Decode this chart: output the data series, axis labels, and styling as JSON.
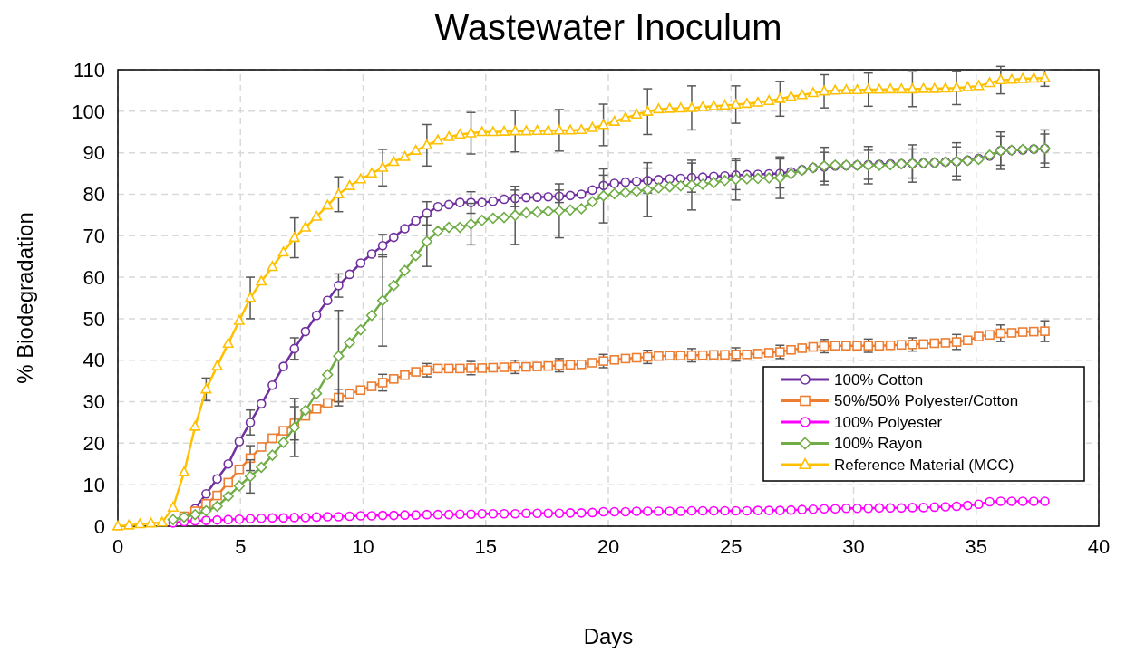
{
  "chart_data": {
    "type": "line",
    "title": "Wastewater Inoculum",
    "xlabel": "Days",
    "ylabel": "% Biodegradation",
    "x": [
      0,
      0.45,
      0.9,
      1.35,
      1.8,
      2.25,
      2.7,
      3.15,
      3.6,
      4.05,
      4.5,
      4.95,
      5.4,
      5.85,
      6.3,
      6.75,
      7.2,
      7.65,
      8.1,
      8.55,
      9.0,
      9.45,
      9.9,
      10.35,
      10.8,
      11.25,
      11.7,
      12.15,
      12.6,
      13.05,
      13.5,
      13.95,
      14.4,
      14.85,
      15.3,
      15.75,
      16.2,
      16.65,
      17.1,
      17.55,
      18.0,
      18.45,
      18.9,
      19.35,
      19.8,
      20.25,
      20.7,
      21.15,
      21.6,
      22.05,
      22.5,
      22.95,
      23.4,
      23.85,
      24.3,
      24.75,
      25.2,
      25.65,
      26.1,
      26.55,
      27.0,
      27.45,
      27.9,
      28.35,
      28.8,
      29.25,
      29.7,
      30.15,
      30.6,
      31.05,
      31.5,
      31.95,
      32.4,
      32.85,
      33.3,
      33.75,
      34.2,
      34.65,
      35.1,
      35.55,
      36.0,
      36.45,
      36.9,
      37.35,
      37.8
    ],
    "xlim": [
      0,
      40
    ],
    "xticks": [
      0,
      5,
      10,
      15,
      20,
      25,
      30,
      35,
      40
    ],
    "ylim": [
      0,
      110
    ],
    "yticks": [
      0,
      10,
      20,
      30,
      40,
      50,
      60,
      70,
      80,
      90,
      100,
      110
    ],
    "grid": true,
    "legend": "bottom right",
    "line_style": "solid",
    "series": [
      {
        "name": "100% Cotton",
        "color": "#7030a0",
        "marker": "circle",
        "values": [
          null,
          null,
          null,
          null,
          null,
          null,
          null,
          4.2,
          7.8,
          11.4,
          15,
          20.4,
          25,
          29.5,
          34,
          38.5,
          42.8,
          46.9,
          50.8,
          54.4,
          58,
          60.7,
          63.4,
          65.6,
          67.6,
          69.6,
          71.7,
          73.6,
          75.4,
          77,
          77.5,
          78,
          78,
          78,
          78.3,
          78.8,
          79,
          79.2,
          79.3,
          79.4,
          79.5,
          79.7,
          80,
          81,
          82.1,
          82.6,
          82.9,
          83.1,
          83.3,
          83.5,
          83.7,
          83.8,
          84,
          84.1,
          84.3,
          84.4,
          84.6,
          84.7,
          84.8,
          84.9,
          85,
          85.4,
          85.9,
          86.4,
          86.6,
          86.8,
          86.9,
          87,
          87.1,
          87.2,
          87.3,
          87.3,
          87.4,
          87.5,
          87.6,
          87.8,
          87.9,
          88.2,
          88.6,
          89.2,
          90.5,
          90.6,
          90.7,
          90.9,
          91
        ],
        "errors": [
          null,
          null,
          null,
          null,
          null,
          null,
          null,
          null,
          null,
          null,
          null,
          null,
          3,
          null,
          null,
          null,
          2.6,
          null,
          null,
          null,
          2.8,
          null,
          null,
          null,
          2.7,
          null,
          null,
          null,
          2.8,
          null,
          null,
          null,
          2.6,
          null,
          null,
          null,
          2,
          null,
          null,
          null,
          1.5,
          null,
          null,
          null,
          2.5,
          null,
          null,
          null,
          3,
          null,
          null,
          null,
          3.5,
          null,
          null,
          null,
          3.5,
          null,
          null,
          null,
          3.5,
          null,
          null,
          null,
          3.5,
          null,
          null,
          null,
          3.5,
          null,
          null,
          null,
          3.5,
          null,
          null,
          null,
          3.5,
          null,
          null,
          null,
          3.5,
          null,
          null,
          null,
          3.5
        ]
      },
      {
        "name": "50%/50% Polyester/Cotton",
        "color": "#ed7d31",
        "marker": "square",
        "values": [
          null,
          null,
          null,
          null,
          null,
          null,
          2.4,
          3.6,
          5.4,
          7.4,
          10.5,
          13.7,
          16.4,
          19.1,
          21.2,
          23,
          24.8,
          26.6,
          28.3,
          29.7,
          31,
          31.9,
          32.8,
          33.7,
          34.6,
          35.5,
          36.4,
          37.2,
          37.6,
          38,
          38,
          38,
          38.1,
          38.1,
          38.2,
          38.3,
          38.4,
          38.4,
          38.5,
          38.6,
          38.8,
          38.9,
          39,
          39.4,
          39.8,
          40.1,
          40.4,
          40.6,
          40.8,
          41,
          41.1,
          41.1,
          41.2,
          41.2,
          41.3,
          41.3,
          41.4,
          41.4,
          41.6,
          41.8,
          42,
          42.5,
          42.9,
          43.2,
          43.4,
          43.5,
          43.5,
          43.5,
          43.5,
          43.5,
          43.6,
          43.7,
          43.8,
          43.9,
          44.1,
          44.2,
          44.4,
          44.8,
          45.7,
          46.1,
          46.5,
          46.6,
          46.8,
          46.9,
          47
        ],
        "errors": [
          null,
          null,
          null,
          null,
          null,
          null,
          null,
          null,
          null,
          null,
          null,
          null,
          3,
          null,
          null,
          null,
          4,
          null,
          null,
          null,
          2,
          null,
          null,
          null,
          2,
          null,
          null,
          null,
          1.6,
          null,
          null,
          null,
          1.6,
          null,
          null,
          null,
          1.6,
          null,
          null,
          null,
          1.6,
          null,
          null,
          null,
          1.6,
          null,
          null,
          null,
          1.6,
          null,
          null,
          null,
          1.6,
          null,
          null,
          null,
          1.6,
          null,
          null,
          null,
          1.6,
          null,
          null,
          null,
          1.6,
          null,
          null,
          null,
          1.6,
          null,
          null,
          null,
          1.6,
          null,
          null,
          null,
          1.8,
          null,
          null,
          null,
          2,
          null,
          null,
          null,
          2.5
        ]
      },
      {
        "name": "100% Polyester",
        "color": "#ff00ff",
        "marker": "circle",
        "values": [
          null,
          null,
          null,
          null,
          null,
          0.8,
          1.1,
          1.3,
          1.4,
          1.5,
          1.6,
          1.7,
          1.8,
          1.9,
          2,
          2,
          2.1,
          2.1,
          2.2,
          2.3,
          2.3,
          2.4,
          2.5,
          2.5,
          2.6,
          2.6,
          2.7,
          2.7,
          2.8,
          2.8,
          2.8,
          2.9,
          2.9,
          3,
          3,
          3,
          3,
          3.1,
          3.1,
          3.1,
          3.1,
          3.2,
          3.2,
          3.3,
          3.5,
          3.5,
          3.5,
          3.6,
          3.6,
          3.6,
          3.6,
          3.6,
          3.7,
          3.7,
          3.7,
          3.7,
          3.7,
          3.7,
          3.8,
          3.8,
          3.8,
          3.9,
          4,
          4.1,
          4.2,
          4.2,
          4.3,
          4.3,
          4.3,
          4.4,
          4.4,
          4.4,
          4.5,
          4.5,
          4.6,
          4.7,
          4.8,
          5,
          5.3,
          5.9,
          6,
          6,
          6,
          6,
          6
        ]
      },
      {
        "name": "100% Rayon",
        "color": "#70ad47",
        "marker": "diamond",
        "values": [
          null,
          null,
          null,
          null,
          null,
          1.6,
          2.2,
          2.8,
          3.7,
          4.8,
          7.2,
          9.7,
          12,
          14.2,
          17.1,
          20.2,
          23.8,
          27.9,
          32,
          36.5,
          41,
          44.2,
          47.3,
          50.8,
          54.4,
          58,
          61.6,
          65.2,
          68.6,
          71.1,
          72,
          72,
          72.8,
          73.7,
          74.2,
          74.4,
          74.9,
          75.5,
          75.7,
          75.9,
          76,
          76.2,
          76.5,
          78.2,
          79.6,
          80.1,
          80.4,
          80.7,
          81.1,
          81.5,
          81.8,
          82,
          82.2,
          82.4,
          82.8,
          83.3,
          83.6,
          83.7,
          83.8,
          83.9,
          84,
          84.9,
          85.8,
          86.4,
          86.8,
          87,
          87,
          87,
          87,
          87,
          87.1,
          87.3,
          87.4,
          87.5,
          87.6,
          87.8,
          87.9,
          88.1,
          88.4,
          89.4,
          90.5,
          90.6,
          90.8,
          90.9,
          91
        ],
        "errors": [
          null,
          null,
          null,
          null,
          null,
          null,
          null,
          null,
          null,
          null,
          null,
          null,
          4,
          null,
          null,
          null,
          7,
          null,
          null,
          null,
          11,
          null,
          null,
          null,
          11,
          null,
          null,
          null,
          6,
          null,
          null,
          null,
          5,
          null,
          null,
          null,
          7,
          null,
          null,
          null,
          6.5,
          null,
          null,
          null,
          6.5,
          null,
          null,
          null,
          6.5,
          null,
          null,
          null,
          6,
          null,
          null,
          null,
          5,
          null,
          null,
          null,
          5,
          null,
          null,
          null,
          4.5,
          null,
          null,
          null,
          4.5,
          null,
          null,
          null,
          4.5,
          null,
          null,
          null,
          4.5,
          null,
          null,
          null,
          4.5,
          null,
          null,
          null,
          4.5
        ]
      },
      {
        "name": "Reference Material (MCC)",
        "color": "#ffc000",
        "marker": "triangle",
        "values": [
          0,
          0.2,
          0.5,
          0.7,
          0.9,
          4.5,
          13,
          24,
          33,
          38.6,
          44,
          49.5,
          55,
          59,
          62.5,
          66,
          69.5,
          72,
          74.6,
          77.3,
          80,
          82,
          83.6,
          85,
          86.4,
          87.8,
          89,
          90.5,
          91.8,
          93,
          93.8,
          94.4,
          94.7,
          95,
          95,
          95.1,
          95.2,
          95.2,
          95.3,
          95.3,
          95.4,
          95.4,
          95.5,
          96,
          96.7,
          97.5,
          98.4,
          99.2,
          99.9,
          100.5,
          100.6,
          100.7,
          100.8,
          101,
          101.2,
          101.4,
          101.6,
          101.8,
          102.1,
          102.5,
          103,
          103.5,
          103.9,
          104.4,
          104.8,
          105,
          105.1,
          105.1,
          105.2,
          105.2,
          105.3,
          105.3,
          105.3,
          105.4,
          105.4,
          105.5,
          105.6,
          105.8,
          106.1,
          106.8,
          107.5,
          107.6,
          107.8,
          107.9,
          108
        ],
        "errors": [
          null,
          null,
          null,
          null,
          null,
          null,
          null,
          null,
          2.7,
          null,
          null,
          null,
          5,
          null,
          null,
          null,
          4.8,
          null,
          null,
          null,
          4.2,
          null,
          null,
          null,
          4.4,
          null,
          null,
          null,
          5,
          null,
          null,
          null,
          5,
          null,
          null,
          null,
          5,
          null,
          null,
          null,
          5,
          null,
          null,
          null,
          5,
          null,
          null,
          null,
          5.5,
          null,
          null,
          null,
          5.3,
          null,
          null,
          null,
          4.5,
          null,
          null,
          null,
          4.2,
          null,
          null,
          null,
          4,
          null,
          null,
          null,
          4,
          null,
          null,
          null,
          4.2,
          null,
          null,
          null,
          4,
          null,
          null,
          null,
          3.3,
          null,
          null,
          null,
          2
        ]
      }
    ]
  }
}
